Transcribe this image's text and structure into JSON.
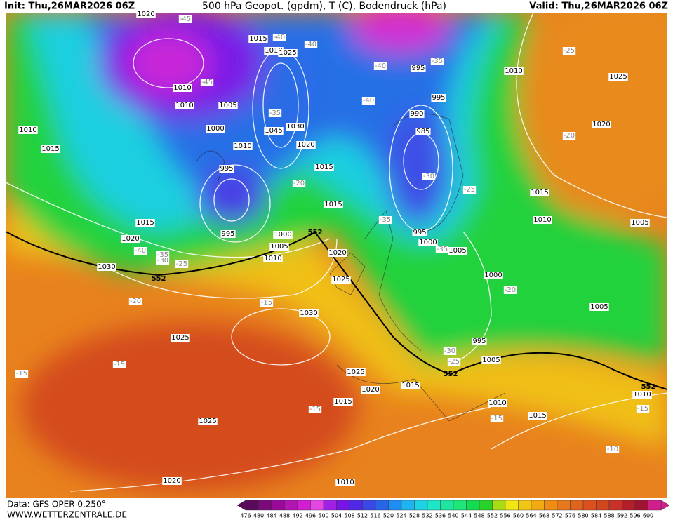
{
  "header": {
    "init": "Init: Thu,26MAR2026 06Z",
    "title": "500 hPa Geopot. (gpdm), T (C), Bodendruck (hPa)",
    "valid": "Valid: Thu,26MAR2026 06Z"
  },
  "footer": {
    "data": "Data: GFS OPER 0.250°",
    "site": "WWW.WETTERZENTRALE.DE"
  },
  "colorbar": {
    "levels": [
      476,
      480,
      484,
      488,
      492,
      496,
      500,
      504,
      508,
      512,
      516,
      520,
      524,
      528,
      532,
      536,
      540,
      544,
      548,
      552,
      556,
      560,
      564,
      568,
      572,
      576,
      580,
      584,
      588,
      592,
      596,
      600
    ],
    "colors": [
      "#5a0a5a",
      "#7a0a7a",
      "#9a0a9a",
      "#b414b4",
      "#d21ed2",
      "#e646e6",
      "#a020e6",
      "#7814e6",
      "#5028e6",
      "#3c46e6",
      "#2864e6",
      "#1e8cf0",
      "#1eb4f0",
      "#1ed2e6",
      "#1ee6c8",
      "#1ee6a0",
      "#1ee678",
      "#14dc50",
      "#28d228",
      "#aadc14",
      "#f0e614",
      "#f0c814",
      "#f0aa14",
      "#f08c14",
      "#e6781e",
      "#e0641e",
      "#dc501e",
      "#d2461e",
      "#c83228",
      "#b41e28",
      "#a01432",
      "#d21e8c"
    ]
  },
  "isobar_labels": [
    1020,
    1015,
    1010,
    1025,
    1010,
    1010,
    1005,
    1000,
    1045,
    1030,
    1010,
    1020,
    1015,
    995,
    1015,
    1000,
    1005,
    1010,
    995,
    1020,
    1025,
    1030,
    1025,
    1025,
    1020,
    1015,
    1020,
    1030,
    1010,
    1015,
    995,
    995,
    990,
    985,
    995,
    1000,
    1005,
    1000,
    995,
    1005,
    1010,
    1025,
    1020,
    1015,
    1010,
    1005,
    1005,
    1010,
    1010,
    1015,
    1015,
    1020,
    1025,
    1015,
    1010
  ],
  "temperature_labels": [
    -45,
    -40,
    -40,
    -45,
    -40,
    -35,
    -40,
    -35,
    -20,
    -25,
    -35,
    -35,
    -40,
    -35,
    -30,
    -25,
    -20,
    -15,
    -15,
    -15,
    -15,
    -20,
    -30,
    -25,
    -15,
    -10,
    -15,
    -25,
    -20,
    -30
  ],
  "geopotential_labels": [
    552,
    552,
    552,
    552
  ]
}
